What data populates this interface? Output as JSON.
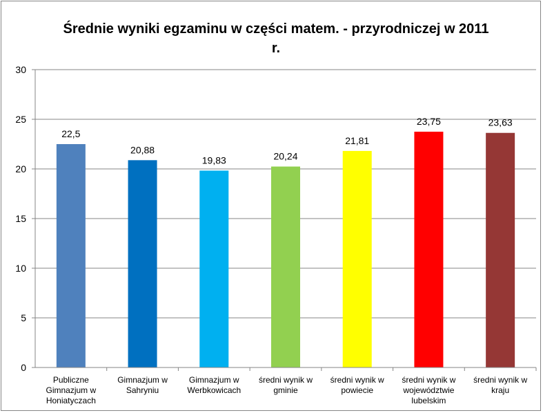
{
  "chart_data": {
    "type": "bar",
    "title": "Średnie wyniki egzaminu w części matem. - przyrodniczej w 2011 r.",
    "categories": [
      "Publiczne Gimnazjum w Honiatyczach",
      "Gimnazjum w Sahryniu",
      "Gimnazjum w Werbkowicach",
      "średni wynik w gminie",
      "średni wynik w powiecie",
      "średni wynik w województwie lubelskim",
      "średni wynik w kraju"
    ],
    "values": [
      22.5,
      20.88,
      19.83,
      20.24,
      21.81,
      23.75,
      23.63
    ],
    "value_labels": [
      "22,5",
      "20,88",
      "19,83",
      "20,24",
      "21,81",
      "23,75",
      "23,63"
    ],
    "colors": [
      "#4f81bd",
      "#0070c0",
      "#00b0f0",
      "#92d050",
      "#ffff00",
      "#ff0000",
      "#953735"
    ],
    "ylim": [
      0,
      30
    ],
    "yticks": [
      0,
      5,
      10,
      15,
      20,
      25,
      30
    ],
    "grid": true
  }
}
